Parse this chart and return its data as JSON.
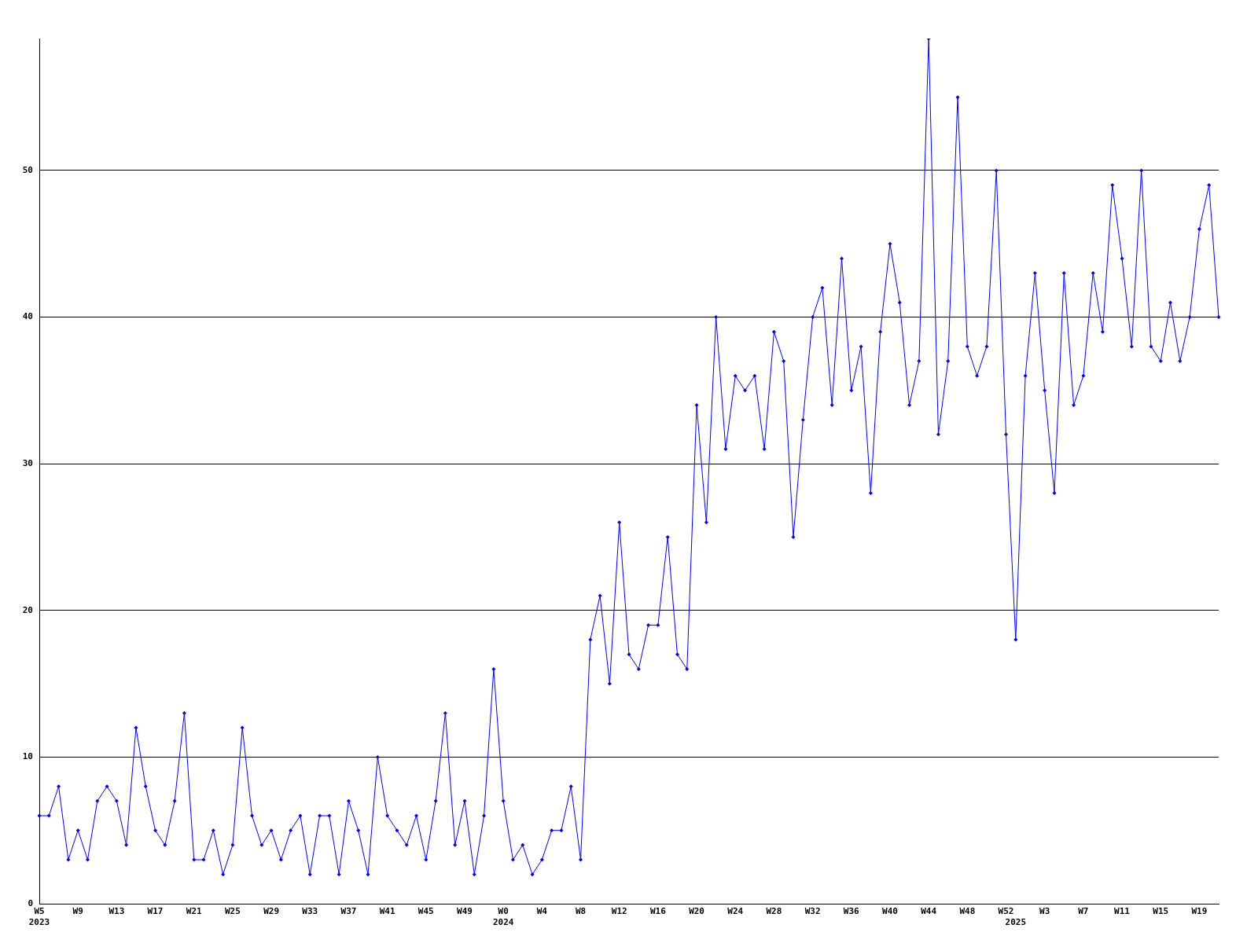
{
  "chart_data": {
    "type": "line",
    "categories": [
      "W5\n2023",
      null,
      null,
      null,
      "W9",
      null,
      null,
      null,
      "W13",
      null,
      null,
      null,
      "W17",
      null,
      null,
      null,
      "W21",
      null,
      null,
      null,
      "W25",
      null,
      null,
      null,
      "W29",
      null,
      null,
      null,
      "W33",
      null,
      null,
      null,
      "W37",
      null,
      null,
      null,
      "W41",
      null,
      null,
      null,
      "W45",
      null,
      null,
      null,
      "W49",
      null,
      null,
      null,
      "W0\n2024",
      null,
      null,
      null,
      "W4",
      null,
      null,
      null,
      "W8",
      null,
      null,
      null,
      "W12",
      null,
      null,
      null,
      "W16",
      null,
      null,
      null,
      "W20",
      null,
      null,
      null,
      "W24",
      null,
      null,
      null,
      "W28",
      null,
      null,
      null,
      "W32",
      null,
      null,
      null,
      "W36",
      null,
      null,
      null,
      "W40",
      null,
      null,
      null,
      "W44",
      null,
      null,
      null,
      "W48",
      null,
      null,
      null,
      "W52",
      "\n2025",
      null,
      null,
      "W3",
      null,
      null,
      null,
      "W7",
      null,
      null,
      null,
      "W11",
      null,
      null,
      null,
      "W15",
      null,
      null,
      null,
      "W19",
      null,
      null
    ],
    "series": [
      {
        "color": "#0000ff",
        "values": [
          6,
          6,
          8,
          3,
          5,
          3,
          7,
          8,
          7,
          4,
          12,
          8,
          5,
          4,
          7,
          13,
          3,
          3,
          5,
          2,
          4,
          12,
          6,
          4,
          5,
          3,
          5,
          6,
          2,
          6,
          6,
          2,
          7,
          5,
          2,
          10,
          6,
          5,
          4,
          6,
          3,
          7,
          13,
          4,
          7,
          2,
          6,
          16,
          7,
          3,
          4,
          2,
          3,
          5,
          5,
          8,
          3,
          18,
          21,
          15,
          26,
          17,
          16,
          19,
          19,
          25,
          17,
          16,
          34,
          26,
          40,
          31,
          36,
          35,
          36,
          31,
          39,
          37,
          25,
          33,
          40,
          42,
          34,
          44,
          35,
          38,
          28,
          39,
          45,
          41,
          34,
          37,
          59,
          32,
          37,
          55,
          38,
          36,
          38,
          50,
          32,
          18,
          36,
          43,
          35,
          28,
          43,
          34,
          36,
          43,
          39,
          49,
          44,
          38,
          50,
          38,
          37,
          41,
          37,
          40,
          46,
          49,
          40
        ]
      }
    ],
    "ylim": [
      0,
      59
    ],
    "yticks": [
      0,
      10,
      20,
      30,
      40,
      50
    ],
    "grid": "y",
    "marker": "diamond",
    "legend": false
  }
}
